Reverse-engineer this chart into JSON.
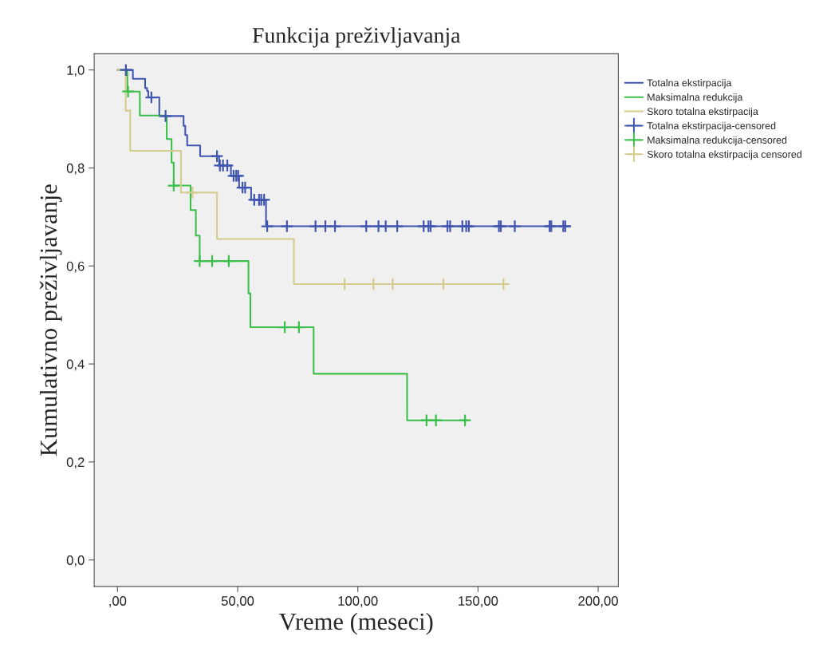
{
  "chart_data": {
    "type": "step",
    "title": "Funkcija preživljavanja",
    "xlabel": "Vreme (meseci)",
    "ylabel": "Kumulativno preživljavanje",
    "xlim": [
      -9.7,
      208.4
    ],
    "ylim": [
      -0.054,
      1.033
    ],
    "xticks": [
      {
        "value": 0,
        "label": ",00"
      },
      {
        "value": 50,
        "label": "50,00"
      },
      {
        "value": 100,
        "label": "100,00"
      },
      {
        "value": 150,
        "label": "150,00"
      },
      {
        "value": 200,
        "label": "200,00"
      }
    ],
    "yticks": [
      {
        "value": 0,
        "label": "0,0"
      },
      {
        "value": 0.2,
        "label": "0,2"
      },
      {
        "value": 0.4,
        "label": "0,4"
      },
      {
        "value": 0.6,
        "label": "0,6"
      },
      {
        "value": 0.8,
        "label": "0,8"
      },
      {
        "value": 1.0,
        "label": "1,0"
      }
    ],
    "grid": false,
    "legend": "right",
    "series": [
      {
        "name": "Totalna ekstirpacija",
        "color": "#4055b0",
        "x": [
          0,
          6.4,
          11.5,
          12.3,
          12.8,
          17.4,
          27.5,
          28.2,
          29.0,
          34.4,
          42.3,
          47.2,
          50.6,
          55.6,
          61.8,
          188.2
        ],
        "values": [
          1.0,
          0.982,
          0.963,
          0.957,
          0.944,
          0.906,
          0.886,
          0.867,
          0.846,
          0.824,
          0.805,
          0.784,
          0.76,
          0.735,
          0.681,
          0.681
        ]
      },
      {
        "name": "Maksimalna redukcija",
        "color": "#3cbf4a",
        "x": [
          0,
          4.1,
          9.3,
          20.5,
          22.5,
          23.4,
          30.4,
          32.6,
          34.2,
          54.5,
          55.3,
          81.6,
          120.5,
          145.6
        ],
        "values": [
          1.0,
          0.956,
          0.907,
          0.859,
          0.811,
          0.764,
          0.714,
          0.662,
          0.61,
          0.544,
          0.475,
          0.38,
          0.285,
          0.285
        ]
      },
      {
        "name": "Skoro totalna ekstirpacija",
        "color": "#d4cc8c",
        "x": [
          0,
          3.4,
          5.3,
          26.4,
          41.4,
          73.4,
          161.9
        ],
        "values": [
          1.0,
          0.917,
          0.835,
          0.75,
          0.655,
          0.563,
          0.563
        ]
      },
      {
        "name": "Totalna ekstirpacija-censored",
        "type": "scatter",
        "marker": "cross",
        "color": "#4055b0",
        "x": [
          3.5,
          14.1,
          20.0,
          41.4,
          42.6,
          43.9,
          45.7,
          48.3,
          49.4,
          50.2,
          52.0,
          53.1,
          56.9,
          58.9,
          59.8,
          61.0,
          62.3,
          70.5,
          82.4,
          86.5,
          90.5,
          103.5,
          108.6,
          111.6,
          116.4,
          127.4,
          129.4,
          130.3,
          137.3,
          138.4,
          143.5,
          145.1,
          146.2,
          158.7,
          159.5,
          165.3,
          179.8,
          180.5,
          185.5,
          186.3
        ],
        "values": [
          1.0,
          0.944,
          0.906,
          0.824,
          0.805,
          0.805,
          0.805,
          0.784,
          0.784,
          0.784,
          0.76,
          0.76,
          0.735,
          0.735,
          0.735,
          0.735,
          0.681,
          0.681,
          0.681,
          0.681,
          0.681,
          0.681,
          0.681,
          0.681,
          0.681,
          0.681,
          0.681,
          0.681,
          0.681,
          0.681,
          0.681,
          0.681,
          0.681,
          0.681,
          0.681,
          0.681,
          0.681,
          0.681,
          0.681,
          0.681
        ]
      },
      {
        "name": "Maksimalna redukcija-censored",
        "type": "scatter",
        "marker": "cross",
        "color": "#3cbf4a",
        "x": [
          4.4,
          23.4,
          34.2,
          39.4,
          46.3,
          69.6,
          75.5,
          128.6,
          132.5,
          144.6
        ],
        "values": [
          0.956,
          0.764,
          0.61,
          0.61,
          0.61,
          0.475,
          0.475,
          0.285,
          0.285,
          0.285
        ]
      },
      {
        "name": "Skoro totalna ekstirpacija censored",
        "type": "scatter",
        "marker": "cross",
        "color": "#d4cc8c",
        "x": [
          31.2,
          94.5,
          106.5,
          114.5,
          135.6,
          160.6
        ],
        "values": [
          0.75,
          0.563,
          0.563,
          0.563,
          0.563,
          0.563
        ]
      }
    ]
  }
}
